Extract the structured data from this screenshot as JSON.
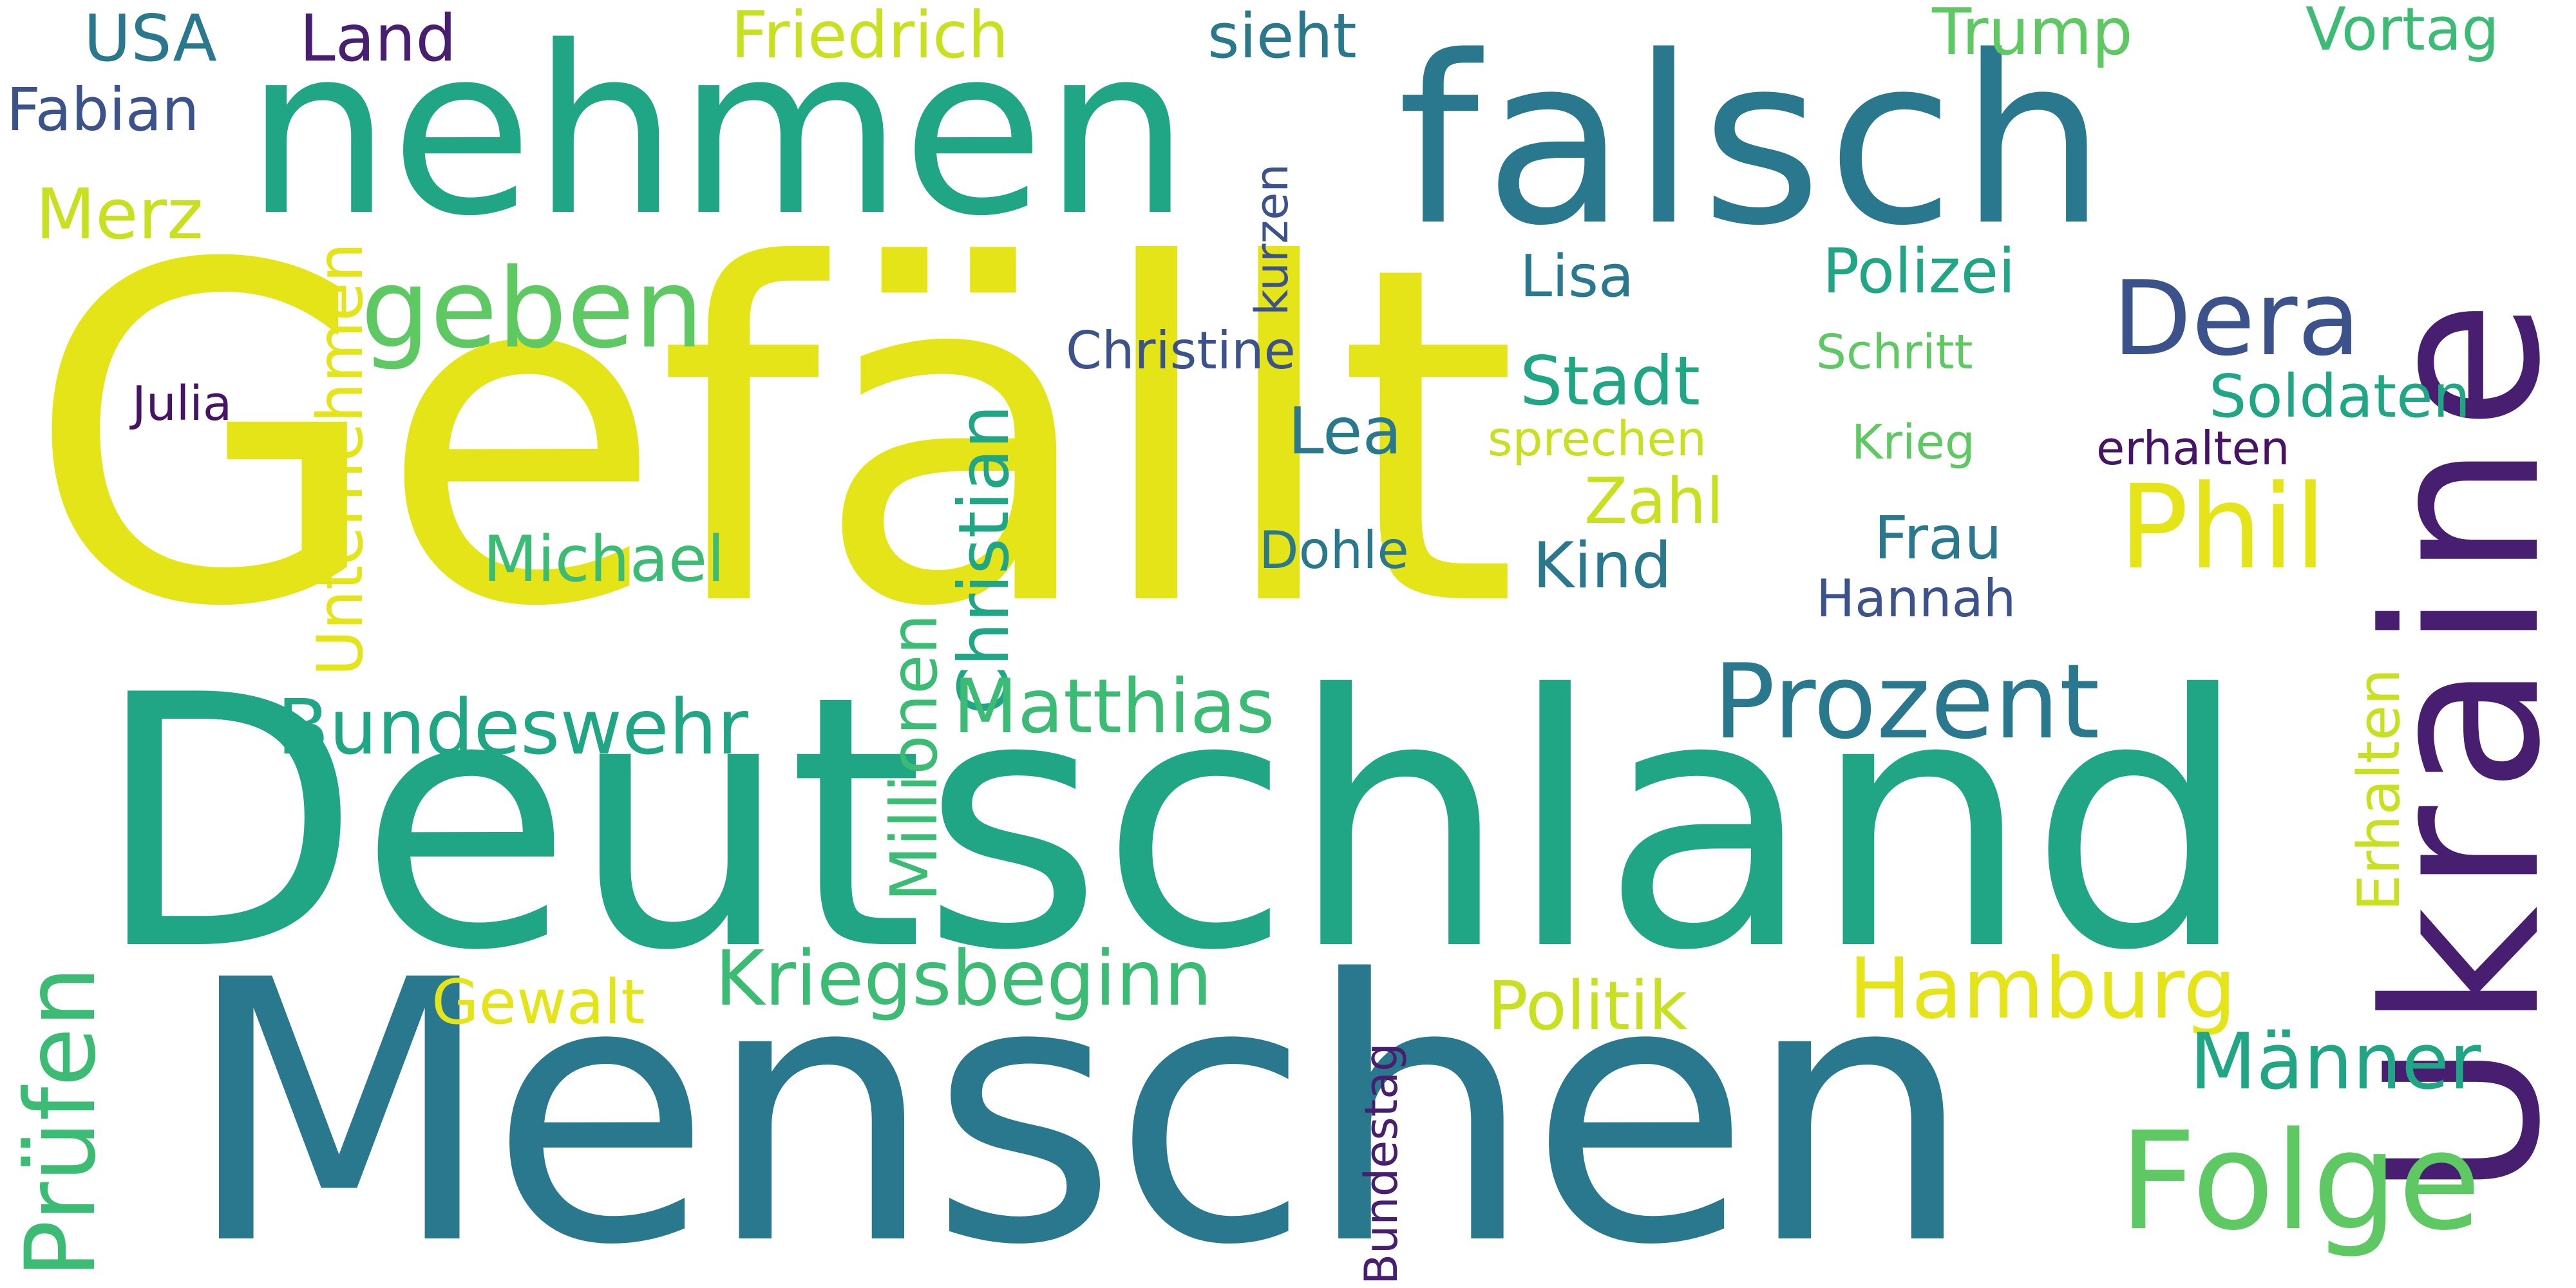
{
  "words": {
    "gefaellt": "Gefällt",
    "deutschland": "Deutschland",
    "menschen": "Menschen",
    "nehmen": "nehmen",
    "falsch": "falsch",
    "ukraine": "Ukraine",
    "geben": "geben",
    "prozent": "Prozent",
    "folge": "Folge",
    "dera": "Dera",
    "phil": "Phil",
    "pruefen": "Prüfen",
    "christian": "Christian",
    "bundeswehr": "Bundeswehr",
    "kriegsbeginn": "Kriegsbeginn",
    "matthias": "Matthias",
    "hamburg": "Hamburg",
    "maenner": "Männer",
    "millionen": "Millionen",
    "unternehmen": "Unternehmen",
    "erhalten_cap": "Erhalten",
    "friedrich": "Friedrich",
    "trump": "Trump",
    "michael": "Michael",
    "politik": "Politik",
    "gewalt": "Gewalt",
    "stadt": "Stadt",
    "polizei": "Polizei",
    "soldaten": "Soldaten",
    "usa": "USA",
    "land": "Land",
    "fabian": "Fabian",
    "vortag": "Vortag",
    "sieht": "sieht",
    "merz": "Merz",
    "lisa": "Lisa",
    "lea": "Lea",
    "zahl": "Zahl",
    "kind": "Kind",
    "frau": "Frau",
    "kurzen": "kurzen",
    "christine": "Christine",
    "julia": "Julia",
    "schritt": "Schritt",
    "sprechen": "sprechen",
    "krieg": "Krieg",
    "erhalten": "erhalten",
    "dohle": "Dohle",
    "hannah": "Hannah",
    "bundestag": "Bundestag"
  },
  "colors": {
    "yellow": "#e4e419",
    "lime": "#c8e020",
    "lightgreen": "#5ec962",
    "green": "#21a685",
    "mediumgreen": "#3cbb75",
    "teal": "#2a788e",
    "tealdark": "#25838e",
    "blue": "#3b528b",
    "purple": "#481f70",
    "indigo": "#471365"
  }
}
